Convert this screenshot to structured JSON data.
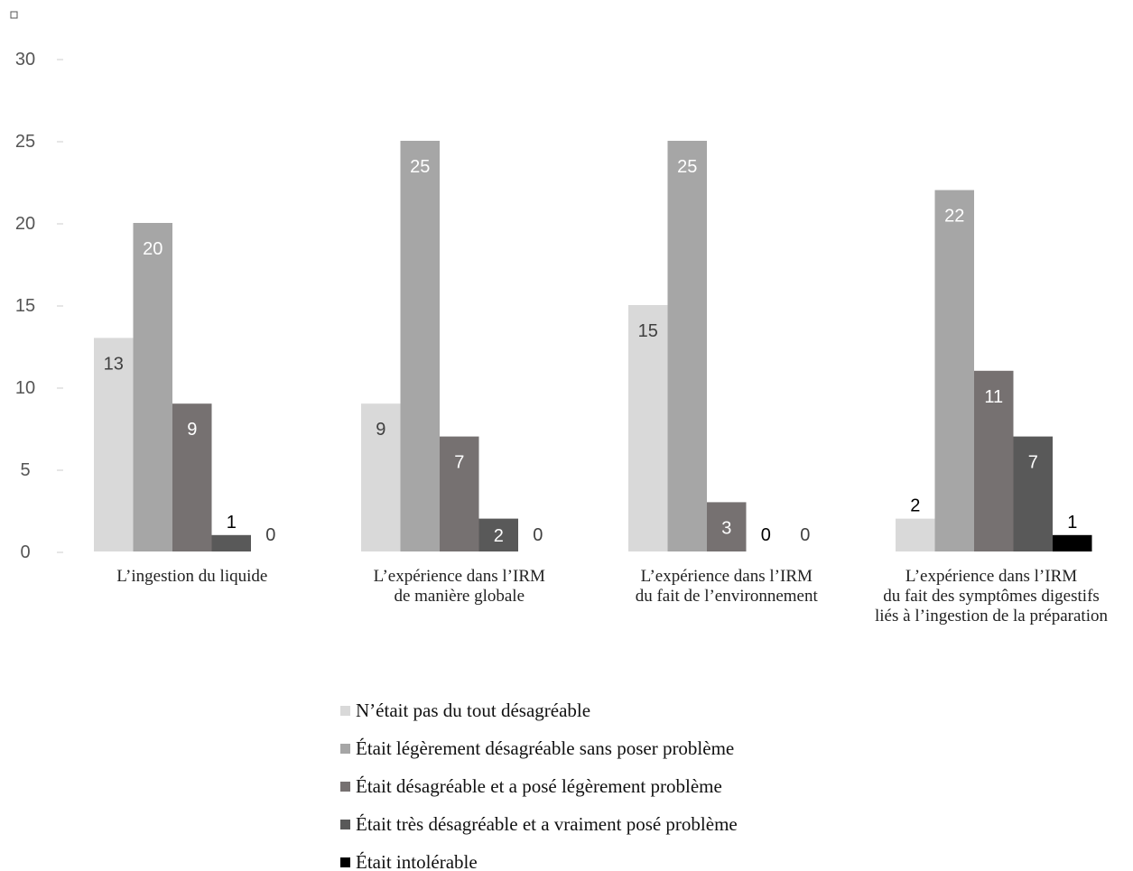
{
  "chart_data": {
    "type": "bar",
    "categories": [
      [
        "L’ingestion du liquide"
      ],
      [
        "L’expérience dans l’IRM",
        "de manière globale"
      ],
      [
        "L’expérience dans l’IRM",
        "du fait de l’environnement"
      ],
      [
        "L’expérience dans l’IRM",
        "du fait des symptômes digestifs",
        "liés à l’ingestion de la préparation"
      ]
    ],
    "series": [
      {
        "name": "N’était pas du tout désagréable",
        "values": [
          13,
          9,
          15,
          2
        ],
        "color": "#d9d9d9"
      },
      {
        "name": "Était légèrement désagréable sans poser problème",
        "values": [
          20,
          25,
          25,
          22
        ],
        "color": "#a6a6a6"
      },
      {
        "name": "Était désagréable et a posé légèrement problème",
        "values": [
          9,
          7,
          3,
          11
        ],
        "color": "#767171"
      },
      {
        "name": "Était très désagréable et a vraiment posé problème",
        "values": [
          1,
          2,
          0,
          7
        ],
        "color": "#595959"
      },
      {
        "name": "Était intolérable",
        "values": [
          0,
          0,
          0,
          1
        ],
        "color": "#000000"
      }
    ],
    "yticks": [
      0,
      5,
      10,
      15,
      20,
      25,
      30
    ],
    "ylim": [
      0,
      30
    ],
    "grid": false,
    "legend_position": "bottom"
  }
}
